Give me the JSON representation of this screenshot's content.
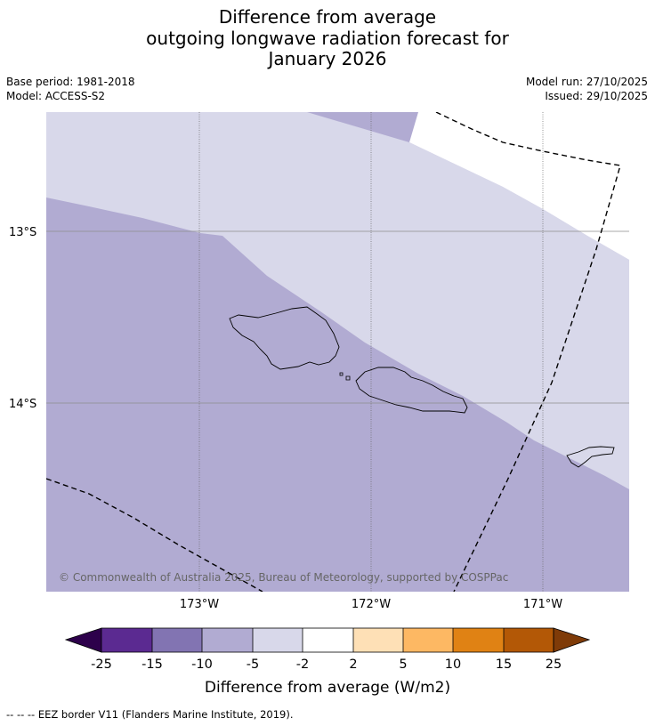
{
  "header": {
    "title_lines": [
      "Difference from average",
      "outgoing longwave radiation forecast for",
      "January 2026"
    ],
    "base_period": "Base period: 1981-2018",
    "model": "Model: ACCESS-S2",
    "model_run": "Model run: 27/10/2025",
    "issued": "Issued: 29/10/2025"
  },
  "map": {
    "lon_labels": [
      "173°W",
      "172°W",
      "171°W"
    ],
    "lat_labels": [
      "13°S",
      "14°S"
    ],
    "copyright": "© Commonwealth of Australia 2025, Bureau of Meteorology, supported by COSPPac",
    "regions": [
      {
        "name": "-5 to -2 W/m2",
        "color": "#d8d8ea"
      },
      {
        "name": "-10 to -5 W/m2",
        "color": "#b1abd2"
      }
    ]
  },
  "colorbar": {
    "ticks": [
      "-25",
      "-15",
      "-10",
      "-5",
      "-2",
      "2",
      "5",
      "10",
      "15",
      "25"
    ],
    "colors": [
      "#5b2a91",
      "#8274b2",
      "#b1abd2",
      "#d8d8ea",
      "#ffffff",
      "#fee0b6",
      "#fdb863",
      "#e08214",
      "#b35806"
    ],
    "under_color": "#2d004b",
    "over_color": "#7f3b08",
    "label": "Difference from average (W/m2)"
  },
  "footer": {
    "eez_note": "--  --  -- EEZ border V11 (Flanders Marine Institute, 2019)."
  }
}
